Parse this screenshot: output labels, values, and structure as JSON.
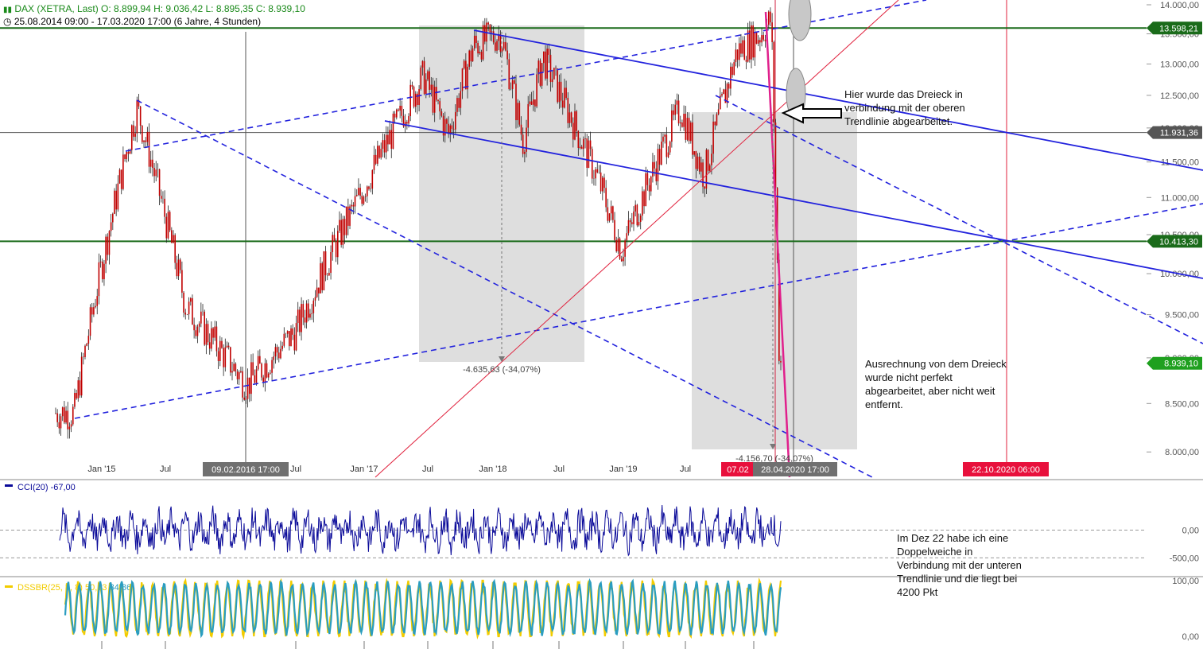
{
  "header": {
    "instrument_line": "DAX (XETRA, Last)  O: 8.899,94  H: 9.036,42  L: 8.895,35  C: 8.939,10",
    "range_line": "25.08.2014 09:00 - 17.03.2020 17:00   (6 Jahre, 4 Stunden)"
  },
  "notes": {
    "note1": "Hier wurde das Dreieck in\nverbindung mit der oberen\nTrendlinie abgearbeitet.",
    "note2": "Ausrechnung von dem Dreieck\nwurde nicht perfekt\nabgearbeitet, aber nicht weit\nentfernt.",
    "note3": "Im Dez 22 habe ich eine\nDoppelweiche in\nVerbindung mit der  unteren\nTrendlinie und die liegt bei\n4200 Pkt"
  },
  "colors": {
    "candles": "#c00000",
    "trend_solid": "#2222dd",
    "trend_dashed": "#2222dd",
    "projection": "#e0208c",
    "red_line": "#e0203c",
    "horizontal": "#1a6b1a",
    "cci": "#0a0a99",
    "dssbr_a": "#f2cc00",
    "dssbr_b": "#2a9dc0",
    "last_price_badge": "#1fa01f",
    "date_badge_red": "#e8103c",
    "date_badge_grey": "#707070"
  },
  "chart_data": [
    {
      "type": "candlestick",
      "title": "DAX (XETRA, Last)",
      "timeframe": "4 Stunden",
      "x_range": [
        "2014-08-25",
        "2020-03-17"
      ],
      "y_range": [
        7900,
        14000
      ],
      "y_scale": "log",
      "y_ticks": [
        "8.000,00",
        "8.500,00",
        "9.000,00",
        "9.500,00",
        "10.000,00",
        "10.500,00",
        "11.000,00",
        "11.500,00",
        "12.000,00",
        "12.500,00",
        "13.000,00",
        "13.500,00",
        "14.000,00"
      ],
      "x_ticks": [
        "Jan '15",
        "Jul",
        "Jul",
        "Jan '17",
        "Jul",
        "Jan '18",
        "Jul",
        "Jan '19",
        "Jul"
      ],
      "ohlc_last": {
        "open": 8899.94,
        "high": 9036.42,
        "low": 8895.35,
        "close": 8939.1
      },
      "series": {
        "x": [
          "2014-10-16",
          "2015-04-10",
          "2015-08-24",
          "2016-02-11",
          "2016-06-27",
          "2016-12-01",
          "2017-06-20",
          "2017-08-29",
          "2017-11-07",
          "2018-01-23",
          "2018-03-26",
          "2018-05-22",
          "2018-10-26",
          "2018-12-27",
          "2019-06-10",
          "2019-08-15",
          "2019-11-15",
          "2020-01-20",
          "2020-02-19",
          "2020-03-16",
          "2020-03-17"
        ],
        "close": [
          8400,
          12300,
          9600,
          8700,
          9300,
          10800,
          12800,
          11900,
          13300,
          13500,
          11800,
          13100,
          11200,
          10300,
          12300,
          11300,
          13200,
          13500,
          13750,
          8300,
          8939
        ]
      },
      "horizontal_levels": [
        13598.21,
        11931.36,
        10413.3
      ],
      "price_labels": [
        "13.598,21",
        "11.931,36",
        "10.413,30",
        "8.939,10"
      ],
      "measures": [
        {
          "label": "-4.635,63 (-34,07%)"
        },
        {
          "label": "-4.156,70 (-34,07%)"
        }
      ],
      "time_markers": [
        "09.02.2016 17:00",
        "07.02",
        "28.04.2020 17:00",
        "22.10.2020 06:00"
      ]
    },
    {
      "type": "line",
      "name": "CCI(20)",
      "label": "CCI(20)",
      "value_label": "-67,00",
      "y_ticks": [
        "0,00",
        "-500,00"
      ],
      "y_range": [
        -600,
        600
      ]
    },
    {
      "type": "line",
      "name": "DSSBR",
      "label": "DSSBR(25, 3, 8)",
      "values": [
        50.23,
        34.86
      ],
      "value_labels": [
        "50,23",
        "34,86"
      ],
      "y_ticks": [
        "100,00",
        "0,00"
      ],
      "y_range": [
        0,
        100
      ]
    }
  ]
}
